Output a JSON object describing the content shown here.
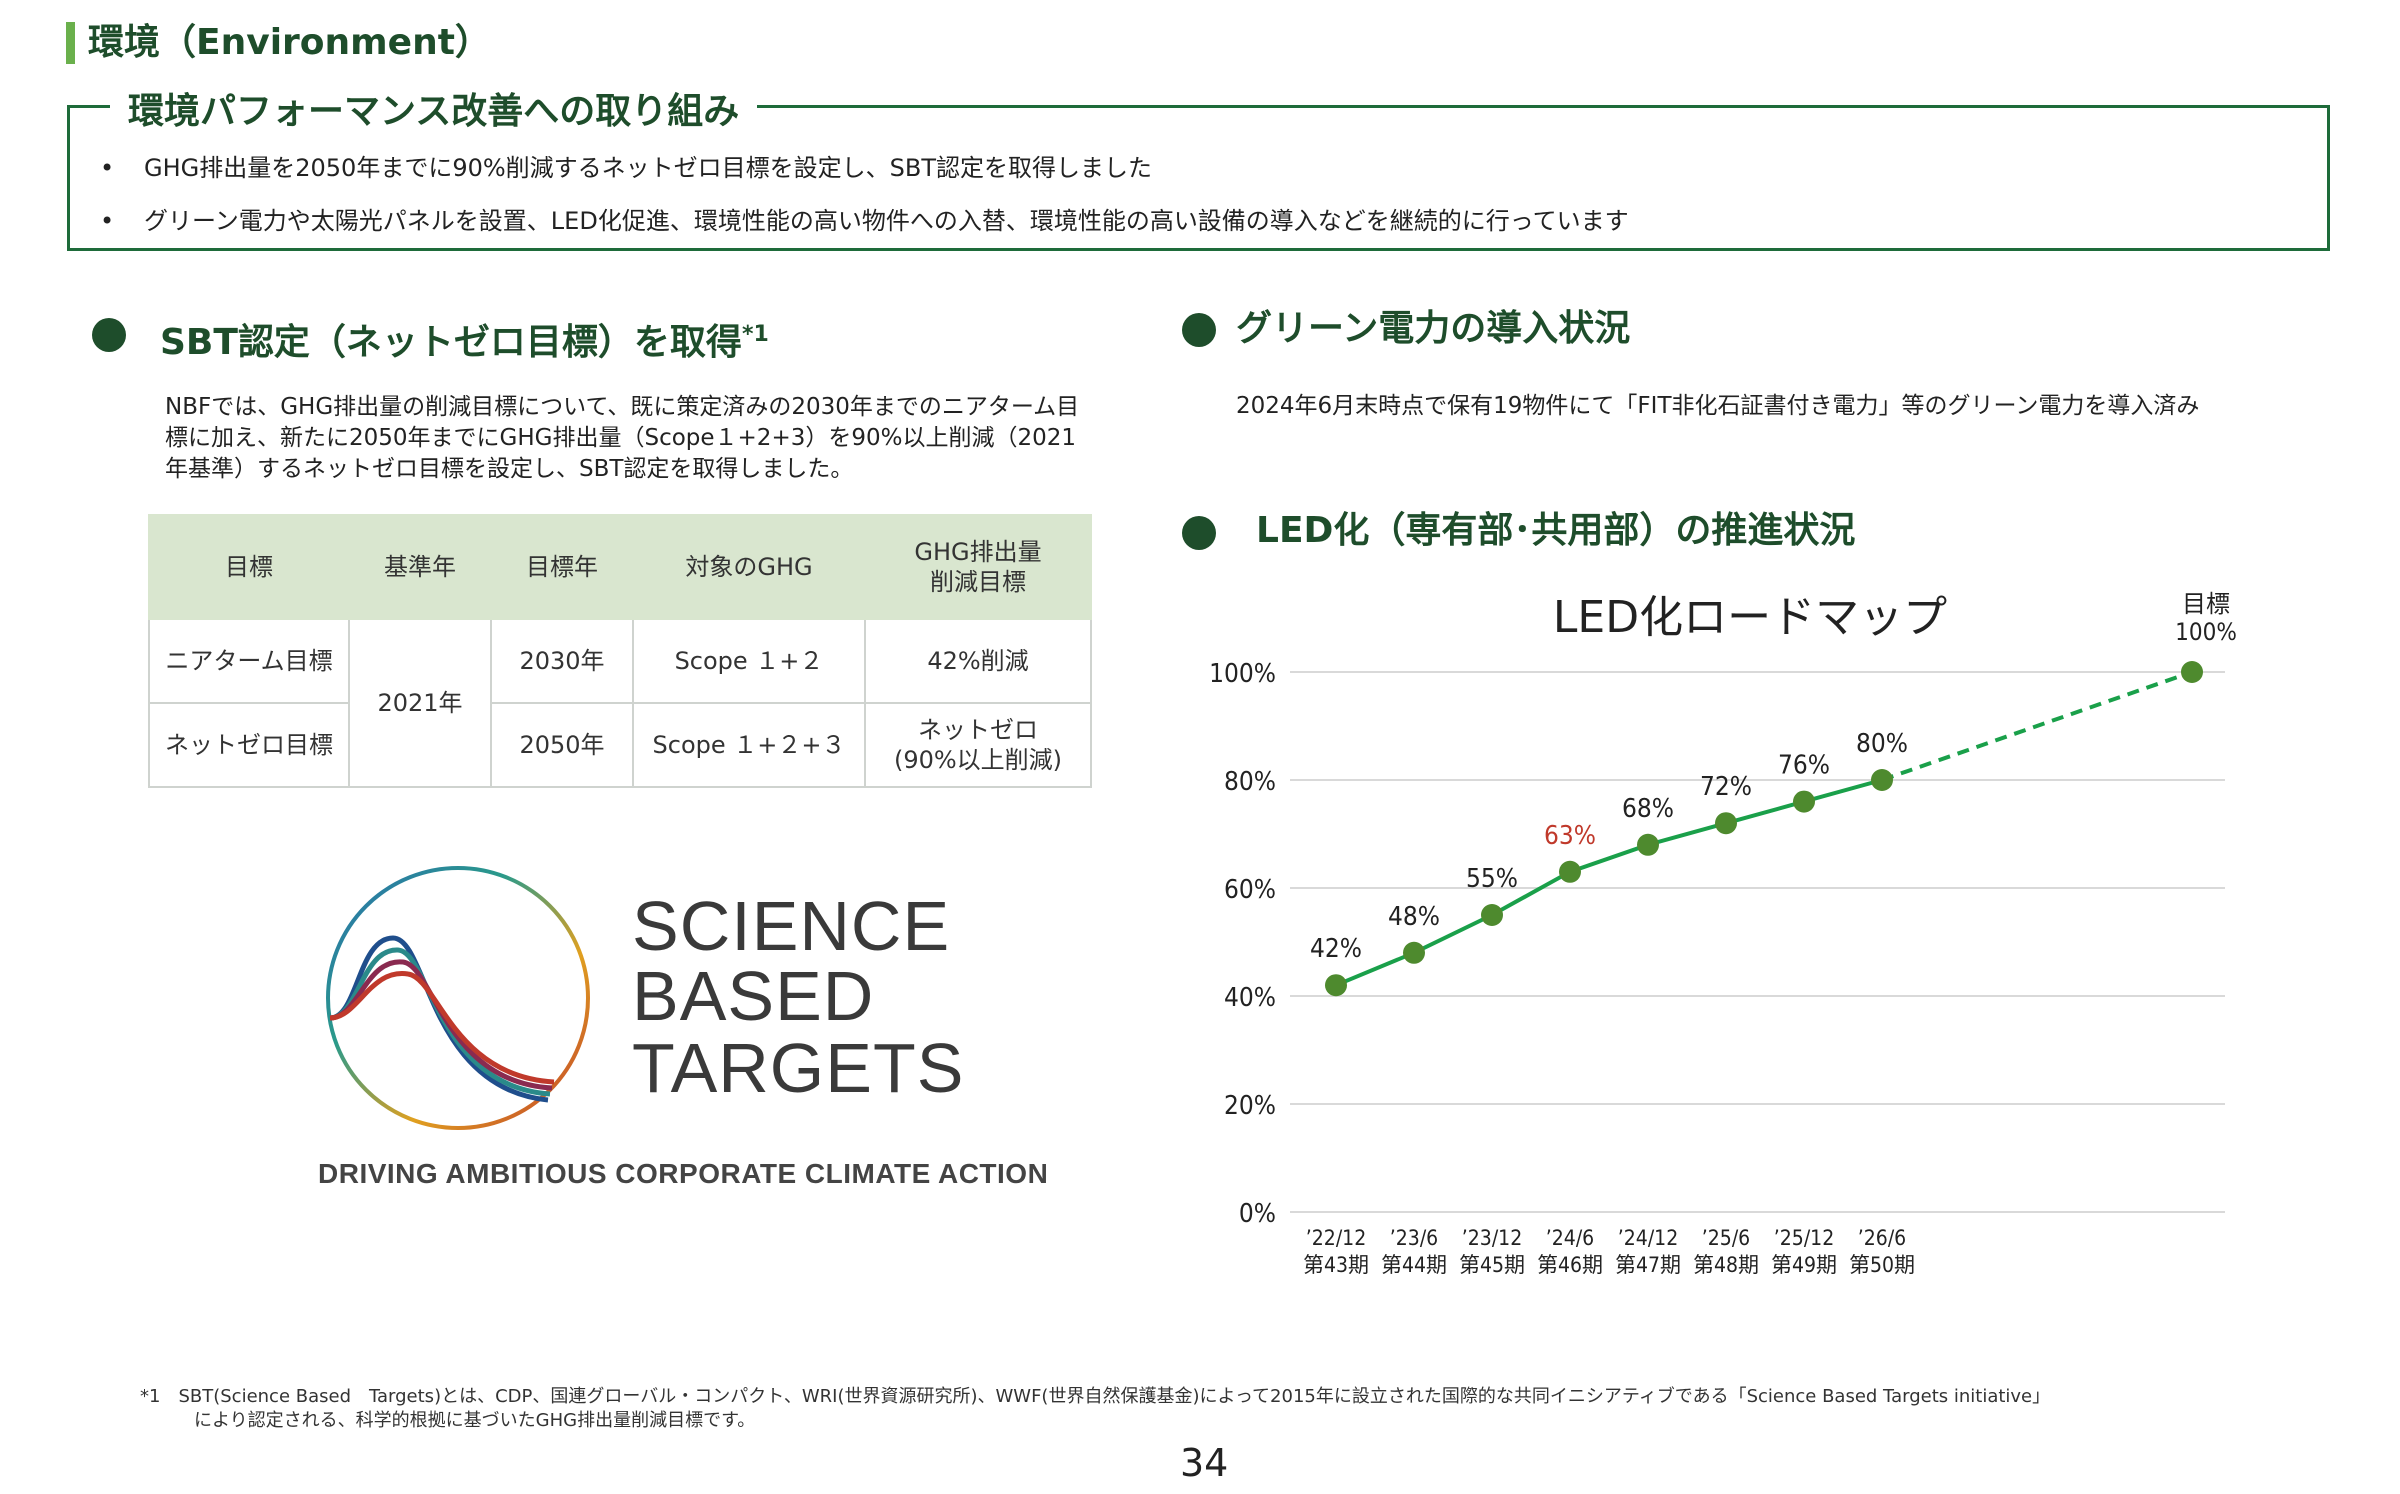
{
  "header": {
    "title": "環境（Environment）"
  },
  "performance": {
    "title": "環境パフォーマンス改善への取り組み",
    "bullets": [
      "GHG排出量を2050年までに90%削減するネットゼロ目標を設定し、SBT認定を取得しました",
      "グリーン電力や太陽光パネルを設置、LED化促進、環境性能の高い物件への入替、環境性能の高い設備の導入などを継続的に行っています"
    ]
  },
  "sbt": {
    "title": "SBT認定（ネットゼロ目標）を取得",
    "title_note": "*1",
    "description": "NBFでは、GHG排出量の削減目標について、既に策定済みの2030年までのニアターム目標に加え、新たに2050年までにGHG排出量（Scope１+2+3）を90%以上削減（2021年基準）するネットゼロ目標を設定し、SBT認定を取得しました。",
    "table": {
      "headers": [
        "目標",
        "基準年",
        "目標年",
        "対象のGHG",
        "GHG排出量\n削減目標"
      ],
      "base_year": "2021年",
      "rows": [
        {
          "goal": "ニアターム目標",
          "target_year": "2030年",
          "ghg": "Scope １+２",
          "reduction": "42%削減"
        },
        {
          "goal": "ネットゼロ目標",
          "target_year": "2050年",
          "ghg": "Scope １+２+３",
          "reduction": "ネットゼロ\n(90%以上削減)"
        }
      ]
    },
    "logo": {
      "lines": [
        "SCIENCE",
        "BASED",
        "TARGETS"
      ],
      "tagline": "DRIVING AMBITIOUS CORPORATE CLIMATE ACTION"
    }
  },
  "green_power": {
    "title": "グリーン電力の導入状況",
    "text": "2024年6月末時点で保有19物件にて「FIT非化石証書付き電力」等のグリーン電力を導入済み"
  },
  "led": {
    "title": "LED化（専有部･共用部）の推進状況"
  },
  "chart_data": {
    "type": "line",
    "title": "LED化ロードマップ",
    "categories": [
      "’22/12",
      "’23/6",
      "’23/12",
      "’24/6",
      "’24/12",
      "’25/6",
      "’25/12",
      "’26/6"
    ],
    "category_periods": [
      "第43期",
      "第44期",
      "第45期",
      "第46期",
      "第47期",
      "第48期",
      "第49期",
      "第50期"
    ],
    "values": [
      42,
      48,
      55,
      63,
      68,
      72,
      76,
      80
    ],
    "data_labels": [
      "42%",
      "48%",
      "55%",
      "63%",
      "68%",
      "72%",
      "76%",
      "80%"
    ],
    "highlight_index": 3,
    "target": {
      "label_line1": "目標",
      "label_line2": "100%",
      "value": 100
    },
    "y_ticks": [
      "0%",
      "20%",
      "40%",
      "60%",
      "80%",
      "100%"
    ],
    "ylim": [
      0,
      100
    ],
    "grid": true,
    "colors": {
      "line": "#1aa04a",
      "marker": "#4e8a2e",
      "highlight_label": "#c0392b",
      "grid": "#d9d9d9"
    }
  },
  "footnote": {
    "line1": "*1　SBT(Science Based　Targets)とは、CDP、国連グローバル・コンパクト、WRI(世界資源研究所)、WWF(世界自然保護基金)によって2015年に設立された国際的な共同イニシアティブである「Science Based Targets initiative」",
    "line2": "　　　により認定される、科学的根拠に基づいたGHG排出量削減目標です。"
  },
  "page_number": "34"
}
